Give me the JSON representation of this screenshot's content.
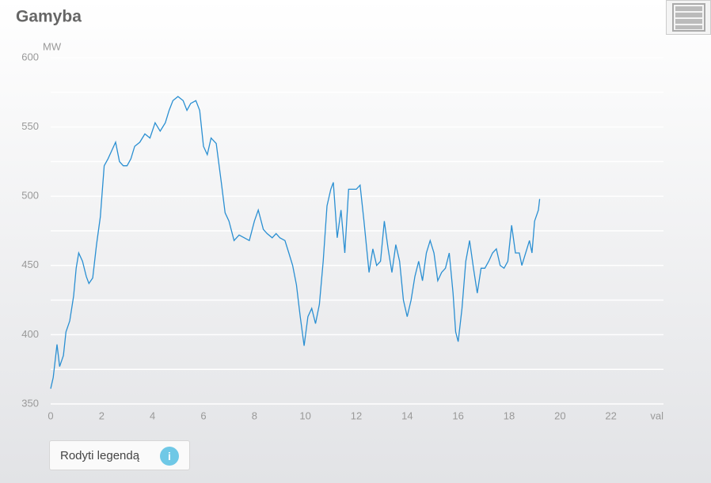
{
  "chart_data": {
    "type": "line",
    "title": "Gamyba",
    "y_label": "MW",
    "x_label": "val",
    "xlim": [
      0,
      24
    ],
    "xticks": [
      0,
      2,
      4,
      6,
      8,
      10,
      12,
      14,
      16,
      18,
      20,
      22
    ],
    "ylim": [
      350,
      600
    ],
    "yticks": [
      350,
      400,
      450,
      500,
      550,
      600
    ],
    "yminor_ticks": [
      375,
      425,
      475,
      525,
      575
    ],
    "grid": true,
    "x": [
      0,
      0.1,
      0.25,
      0.35,
      0.5,
      0.6,
      0.75,
      0.9,
      1,
      1.1,
      1.25,
      1.4,
      1.5,
      1.65,
      1.8,
      1.95,
      2.1,
      2.25,
      2.4,
      2.55,
      2.7,
      2.85,
      3,
      3.15,
      3.3,
      3.5,
      3.7,
      3.9,
      4.1,
      4.3,
      4.5,
      4.65,
      4.8,
      5,
      5.2,
      5.35,
      5.5,
      5.7,
      5.85,
      6,
      6.15,
      6.3,
      6.5,
      6.7,
      6.85,
      7,
      7.2,
      7.4,
      7.6,
      7.8,
      8,
      8.15,
      8.35,
      8.5,
      8.7,
      8.85,
      9,
      9.2,
      9.35,
      9.5,
      9.65,
      9.8,
      9.95,
      10.1,
      10.25,
      10.4,
      10.55,
      10.7,
      10.85,
      11,
      11.1,
      11.25,
      11.4,
      11.55,
      11.7,
      11.9,
      12,
      12.15,
      12.3,
      12.5,
      12.65,
      12.8,
      12.95,
      13.1,
      13.25,
      13.4,
      13.55,
      13.7,
      13.85,
      14,
      14.15,
      14.3,
      14.45,
      14.6,
      14.75,
      14.9,
      15.05,
      15.2,
      15.35,
      15.5,
      15.65,
      15.8,
      15.9,
      16,
      16.15,
      16.3,
      16.45,
      16.6,
      16.75,
      16.9,
      17.05,
      17.2,
      17.35,
      17.5,
      17.65,
      17.8,
      17.95,
      18.1,
      18.25,
      18.4,
      18.5,
      18.7,
      18.8,
      18.9,
      19,
      19.15,
      19.2
    ],
    "series": [
      {
        "name": "Gamyba",
        "color": "#2a8fd2",
        "values": [
          361,
          369,
          393,
          377,
          385,
          402,
          410,
          428,
          448,
          459,
          453,
          442,
          437,
          441,
          465,
          485,
          522,
          527,
          533,
          539,
          525,
          522,
          522,
          527,
          536,
          539,
          545,
          542,
          553,
          547,
          553,
          562,
          569,
          572,
          569,
          562,
          567,
          569,
          562,
          536,
          530,
          542,
          538,
          510,
          488,
          482,
          468,
          472,
          470,
          468,
          482,
          490,
          476,
          473,
          470,
          473,
          470,
          468,
          459,
          450,
          436,
          413,
          392,
          413,
          419,
          408,
          422,
          453,
          493,
          505,
          510,
          470,
          490,
          459,
          505,
          505,
          505,
          508,
          482,
          445,
          462,
          450,
          453,
          482,
          462,
          445,
          465,
          453,
          425,
          413,
          425,
          442,
          453,
          439,
          459,
          468,
          459,
          439,
          445,
          448,
          459,
          430,
          402,
          395,
          419,
          453,
          468,
          448,
          430,
          448,
          448,
          453,
          459,
          462,
          450,
          448,
          453,
          479,
          459,
          459,
          450,
          462,
          468,
          459,
          482,
          490,
          498
        ]
      }
    ],
    "legend_button": "Rodyti legendą",
    "info_icon": "i"
  }
}
